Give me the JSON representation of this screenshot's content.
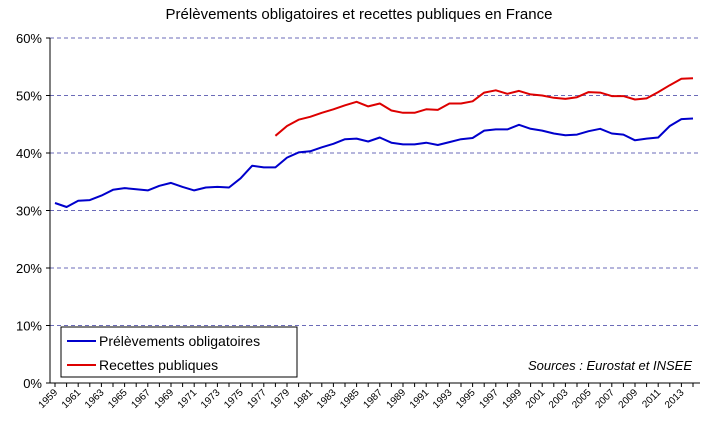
{
  "chart_data": {
    "type": "line",
    "title": "Prélèvements obligatoires et recettes publiques en France",
    "xlabel": "",
    "ylabel": "",
    "xlim": [
      1959,
      2014
    ],
    "ylim": [
      0,
      60
    ],
    "y_ticks": [
      "0%",
      "10%",
      "20%",
      "30%",
      "40%",
      "50%",
      "60%"
    ],
    "y_tick_values": [
      0,
      10,
      20,
      30,
      40,
      50,
      60
    ],
    "x_tick_labels": [
      "1959",
      "1961",
      "1963",
      "1965",
      "1967",
      "1969",
      "1971",
      "1973",
      "1975",
      "1977",
      "1979",
      "1981",
      "1983",
      "1985",
      "1987",
      "1989",
      "1991",
      "1993",
      "1995",
      "1997",
      "1999",
      "2001",
      "2003",
      "2005",
      "2007",
      "2009",
      "2011",
      "2013"
    ],
    "grid": "horizontal-dashed",
    "legend_position": "bottom-left",
    "annotation": "Sources : Eurostat et INSEE",
    "series": [
      {
        "name": "Prélèvements obligatoires",
        "color": "#0000cc",
        "x": [
          1959,
          1960,
          1961,
          1962,
          1963,
          1964,
          1965,
          1966,
          1967,
          1968,
          1969,
          1970,
          1971,
          1972,
          1973,
          1974,
          1975,
          1976,
          1977,
          1978,
          1979,
          1980,
          1981,
          1982,
          1983,
          1984,
          1985,
          1986,
          1987,
          1988,
          1989,
          1990,
          1991,
          1992,
          1993,
          1994,
          1995,
          1996,
          1997,
          1998,
          1999,
          2000,
          2001,
          2002,
          2003,
          2004,
          2005,
          2006,
          2007,
          2008,
          2009,
          2010,
          2011,
          2012,
          2013,
          2014
        ],
        "values": [
          31.3,
          30.6,
          31.7,
          31.8,
          32.6,
          33.6,
          33.9,
          33.7,
          33.5,
          34.3,
          34.8,
          34.1,
          33.5,
          34.0,
          34.1,
          34.0,
          35.6,
          37.8,
          37.5,
          37.5,
          39.2,
          40.1,
          40.3,
          41.0,
          41.6,
          42.4,
          42.5,
          42.0,
          42.7,
          41.8,
          41.5,
          41.5,
          41.8,
          41.4,
          41.9,
          42.4,
          42.6,
          43.9,
          44.1,
          44.1,
          44.9,
          44.2,
          43.9,
          43.4,
          43.1,
          43.2,
          43.8,
          44.2,
          43.4,
          43.2,
          42.2,
          42.5,
          42.7,
          44.7,
          45.9,
          46.0
        ]
      },
      {
        "name": "Recettes publiques",
        "color": "#dd0000",
        "x": [
          1978,
          1979,
          1980,
          1981,
          1982,
          1983,
          1984,
          1985,
          1986,
          1987,
          1988,
          1989,
          1990,
          1991,
          1992,
          1993,
          1994,
          1995,
          1996,
          1997,
          1998,
          1999,
          2000,
          2001,
          2002,
          2003,
          2004,
          2005,
          2006,
          2007,
          2008,
          2009,
          2010,
          2011,
          2012,
          2013,
          2014
        ],
        "values": [
          43.0,
          44.7,
          45.8,
          46.3,
          47.0,
          47.6,
          48.3,
          48.9,
          48.1,
          48.6,
          47.4,
          47.0,
          47.0,
          47.6,
          47.5,
          48.6,
          48.6,
          49.0,
          50.5,
          50.9,
          50.3,
          50.8,
          50.2,
          50.0,
          49.6,
          49.4,
          49.7,
          50.6,
          50.5,
          49.9,
          49.9,
          49.3,
          49.5,
          50.6,
          51.8,
          52.9,
          53.0
        ]
      }
    ]
  }
}
